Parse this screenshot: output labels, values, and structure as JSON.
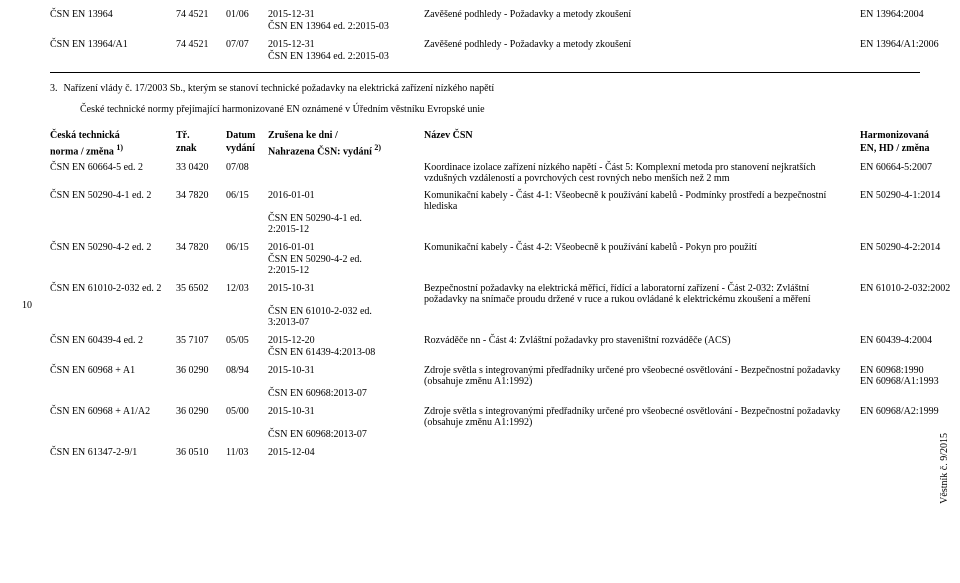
{
  "top": {
    "r1": {
      "code": "ČSN EN 13964",
      "cls": "74 4521",
      "date": "01/06",
      "cancel": "2015-12-31",
      "repl": "ČSN EN 13964 ed. 2:2015-03",
      "title": "Zavěšené podhledy - Požadavky a metody zkoušení",
      "harm": "EN 13964:2004"
    },
    "r2": {
      "code": "ČSN EN 13964/A1",
      "cls": "74 4521",
      "date": "07/07",
      "cancel": "2015-12-31",
      "repl": "ČSN EN 13964 ed. 2:2015-03",
      "title": "Zavěšené podhledy - Požadavky a metody zkoušení",
      "harm": "EN 13964/A1:2006"
    }
  },
  "secnum": "3.",
  "sectitle": "Nařízení vlády č. 17/2003 Sb., kterým se stanoví technické požadavky na elektrická zařízení nízkého napětí",
  "secpara": "České technické normy přejímající harmonizované EN oznámené v Úředním věstníku Evropské unie",
  "head": {
    "h1a": "Česká technická",
    "h1b": "norma / změna",
    "h2a": "Tř.",
    "h2b": "znak",
    "h3a": "Datum",
    "h3b": "vydání",
    "h4a": "Zrušena ke dni /",
    "h4b": "Nahrazena ČSN: vydání",
    "h5": "Název ČSN",
    "h6a": "Harmonizovaná",
    "h6b": "EN, HD / změna",
    "sup1": "1)",
    "sup2": "2)"
  },
  "rows": [
    {
      "code": "ČSN EN 60664-5 ed. 2",
      "cls": "33 0420",
      "date": "07/08",
      "cancel": "",
      "repl": "",
      "title": "Koordinace izolace zařízení nízkého napětí - Část 5: Komplexní metoda pro stanovení nejkratších vzdušných vzdáleností a povrchových cest rovných nebo menších než 2 mm",
      "harm": "EN 60664-5:2007"
    },
    {
      "code": "ČSN  EN 50290-4-1 ed. 2",
      "cls": "34 7820",
      "date": "06/15",
      "cancel": "2016-01-01",
      "repl": "ČSN EN 50290-4-1 ed. 2:2015-12",
      "title": "Komunikační kabely - Část 4-1: Všeobecně k používání kabelů - Podmínky prostředí a bezpečnostní hlediska",
      "harm": "EN 50290-4-1:2014"
    },
    {
      "code": "ČSN  EN 50290-4-2 ed. 2",
      "cls": "34 7820",
      "date": "06/15",
      "cancel": "2016-01-01",
      "repl": "ČSN EN 50290-4-2 ed. 2:2015-12",
      "title": "Komunikační kabely - Část 4-2: Všeobecně k používání kabelů - Pokyn pro použití",
      "harm": "EN 50290-4-2:2014"
    },
    {
      "code": "ČSN EN 61010-2-032 ed. 2",
      "cls": "35 6502",
      "date": "12/03",
      "cancel": "2015-10-31",
      "repl": "ČSN EN 61010-2-032 ed. 3:2013-07",
      "title": "Bezpečnostní požadavky na elektrická měřicí, řídící a laboratorní zařízení - Část 2-032: Zvláštní požadavky na snímače proudu držené v ruce a rukou ovládané k elektrickému zkoušení a měření",
      "harm": "EN 61010-2-032:2002"
    },
    {
      "code": "ČSN EN 60439-4 ed. 2",
      "cls": "35 7107",
      "date": "05/05",
      "cancel": "2015-12-20",
      "repl": "ČSN EN 61439-4:2013-08",
      "title": "Rozváděče nn - Část 4: Zvláštní požadavky pro staveništní rozváděče (ACS)",
      "harm": "EN 60439-4:2004"
    },
    {
      "code": "ČSN EN 60968 + A1",
      "cls": "36 0290",
      "date": "08/94",
      "cancel": "2015-10-31",
      "repl": "ČSN EN 60968:2013-07",
      "title": "Zdroje světla s integrovanými předřadníky určené pro všeobecné osvětlování - Bezpečnostní požadavky (obsahuje změnu A1:1992)",
      "harm": "EN 60968:1990 EN 60968/A1:1993"
    },
    {
      "code": "ČSN EN 60968 + A1/A2",
      "cls": "36 0290",
      "date": "05/00",
      "cancel": "2015-10-31",
      "repl": "ČSN EN 60968:2013-07",
      "title": "Zdroje světla s integrovanými předřadníky určené pro všeobecné osvětlování - Bezpečnostní požadavky (obsahuje změnu A1:1992)",
      "harm": "EN 60968/A2:1999"
    },
    {
      "code": "ČSN EN 61347-2-9/1",
      "cls": "36 0510",
      "date": "11/03",
      "cancel": "2015-12-04",
      "repl": "",
      "title": "",
      "harm": ""
    }
  ],
  "pagenum": "10",
  "footer": "Věstník č. 9/2015"
}
